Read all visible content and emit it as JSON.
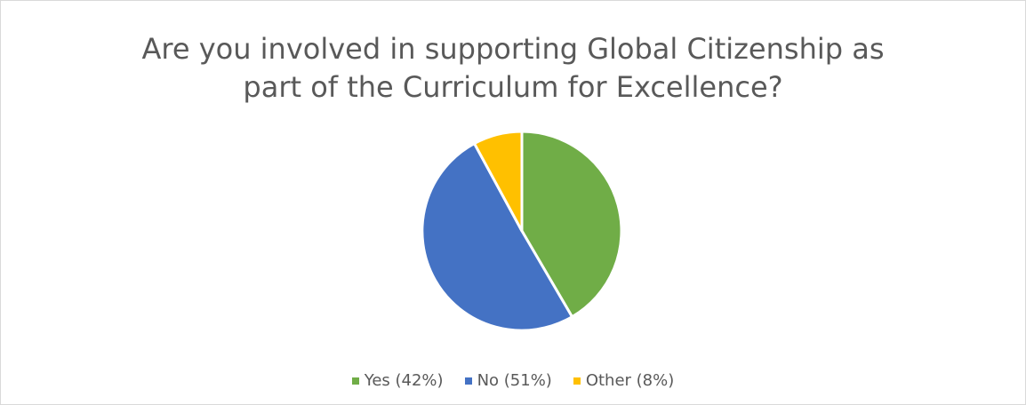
{
  "chart_data": {
    "type": "pie",
    "title_lines": [
      "Are you involved in supporting Global Citizenship as",
      "part of the Curriculum for Excellence?"
    ],
    "categories": [
      "Yes (42%)",
      "No (51%)",
      "Other (8%)"
    ],
    "values": [
      42,
      51,
      8
    ],
    "colors": [
      "#70ad47",
      "#4472c4",
      "#ffc000"
    ],
    "legend_position": "bottom"
  }
}
